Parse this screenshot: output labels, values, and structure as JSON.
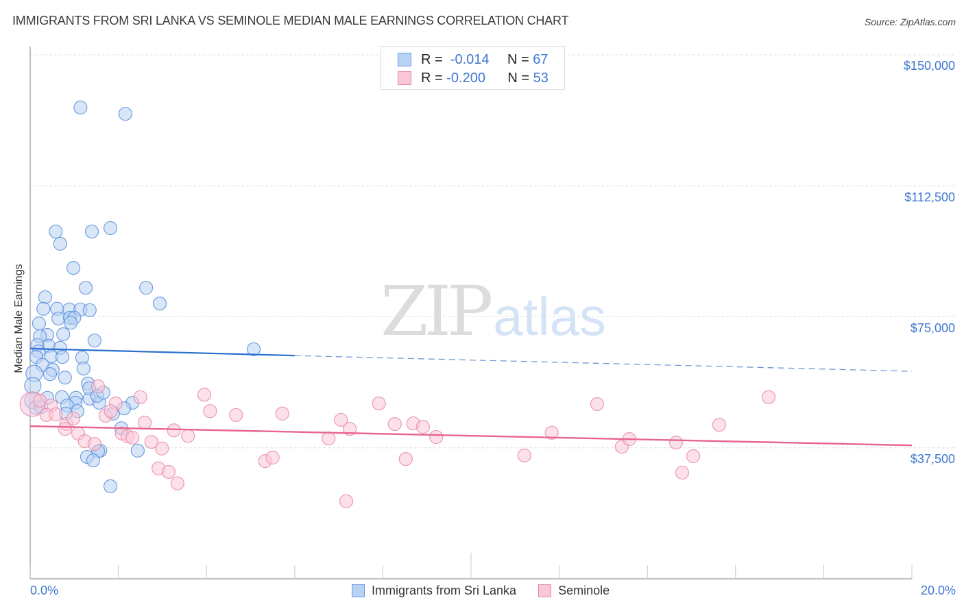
{
  "header": {
    "title": "IMMIGRANTS FROM SRI LANKA VS SEMINOLE MEDIAN MALE EARNINGS CORRELATION CHART",
    "source": "Source: ZipAtlas.com"
  },
  "legend_box": {
    "rows": [
      {
        "r_label": "R =",
        "r_value": "-0.014",
        "n_label": "N =",
        "n_value": "67"
      },
      {
        "r_label": "R =",
        "r_value": "-0.200",
        "n_label": "N =",
        "n_value": "53"
      }
    ]
  },
  "bottom_legend": {
    "series_1": "Immigrants from Sri Lanka",
    "series_2": "Seminole"
  },
  "axes": {
    "ylabel": "Median Male Earnings",
    "y_ticks": [
      "$150,000",
      "$112,500",
      "$75,000",
      "$37,500"
    ],
    "x_ticks": [
      "0.0%",
      "20.0%"
    ]
  },
  "watermark": {
    "part1": "ZIP",
    "part2": "atlas"
  },
  "colors": {
    "blue_fill": "#b8d2f3",
    "blue_stroke": "#5b8fdc",
    "blue_line": "#2a6fd0",
    "pink_fill": "#f9c8d8",
    "pink_stroke": "#e88aa8",
    "pink_line": "#e8648f",
    "tick_label": "#3f77d1"
  },
  "chart_data": {
    "type": "scatter",
    "title": "IMMIGRANTS FROM SRI LANKA VS SEMINOLE MEDIAN MALE EARNINGS CORRELATION CHART",
    "xlabel": "",
    "ylabel": "Median Male Earnings",
    "xlim": [
      0,
      20
    ],
    "ylim": [
      0,
      150000
    ],
    "x_unit": "%",
    "y_ticks": [
      37500,
      75000,
      112500,
      150000
    ],
    "x_ticks": [
      0,
      20
    ],
    "grid": "horizontal dashed",
    "legend_position": "top-center and bottom",
    "series": [
      {
        "name": "Immigrants from Sri Lanka",
        "R": -0.014,
        "N": 67,
        "trend": {
          "x": [
            0,
            6,
            20
          ],
          "y": [
            65900,
            63900,
            59400
          ],
          "solid_until": 6
        },
        "points": [
          [
            1.14,
            134900
          ],
          [
            2.16,
            133100
          ],
          [
            0.58,
            99400
          ],
          [
            1.4,
            99400
          ],
          [
            1.82,
            100400
          ],
          [
            0.68,
            95900
          ],
          [
            0.98,
            89000
          ],
          [
            1.26,
            83300
          ],
          [
            2.63,
            83300
          ],
          [
            2.94,
            78800
          ],
          [
            0.34,
            80600
          ],
          [
            0.3,
            77300
          ],
          [
            0.61,
            77300
          ],
          [
            0.89,
            77100
          ],
          [
            1.14,
            77100
          ],
          [
            1.35,
            76900
          ],
          [
            0.2,
            73100
          ],
          [
            0.64,
            74500
          ],
          [
            0.9,
            74700
          ],
          [
            1.0,
            74700
          ],
          [
            0.92,
            73300
          ],
          [
            0.75,
            70000
          ],
          [
            0.39,
            69800
          ],
          [
            0.22,
            69400
          ],
          [
            1.46,
            68200
          ],
          [
            0.42,
            66700
          ],
          [
            0.16,
            66900
          ],
          [
            0.68,
            66100
          ],
          [
            0.19,
            65100
          ],
          [
            5.07,
            65700
          ],
          [
            0.48,
            63700
          ],
          [
            0.73,
            63500
          ],
          [
            1.18,
            63300
          ],
          [
            0.14,
            63500
          ],
          [
            0.28,
            61200
          ],
          [
            1.21,
            60200
          ],
          [
            0.51,
            59800
          ],
          [
            0.09,
            58800
          ],
          [
            0.45,
            58600
          ],
          [
            0.79,
            57600
          ],
          [
            0.06,
            55300
          ],
          [
            1.31,
            55900
          ],
          [
            0.39,
            51800
          ],
          [
            0.72,
            52000
          ],
          [
            1.04,
            51800
          ],
          [
            1.35,
            51600
          ],
          [
            1.03,
            50400
          ],
          [
            1.57,
            50400
          ],
          [
            2.32,
            50400
          ],
          [
            0.84,
            49600
          ],
          [
            1.07,
            48000
          ],
          [
            1.34,
            54500
          ],
          [
            0.81,
            47300
          ],
          [
            1.88,
            47300
          ],
          [
            2.07,
            43100
          ],
          [
            1.59,
            36700
          ],
          [
            1.54,
            36500
          ],
          [
            2.44,
            36700
          ],
          [
            1.29,
            34900
          ],
          [
            1.43,
            33900
          ],
          [
            1.82,
            26500
          ],
          [
            0.06,
            51000
          ],
          [
            0.12,
            49000
          ],
          [
            1.52,
            52400
          ],
          [
            1.66,
            53300
          ],
          [
            2.13,
            48800
          ],
          [
            0.25,
            49200
          ]
        ]
      },
      {
        "name": "Seminole",
        "R": -0.2,
        "N": 53,
        "trend": {
          "x": [
            0,
            20
          ],
          "y": [
            43700,
            38200
          ]
        },
        "points": [
          [
            0.05,
            50000
          ],
          [
            0.22,
            51000
          ],
          [
            0.47,
            49600
          ],
          [
            0.37,
            46900
          ],
          [
            0.58,
            47100
          ],
          [
            0.82,
            44300
          ],
          [
            0.98,
            45900
          ],
          [
            0.79,
            42900
          ],
          [
            1.09,
            41600
          ],
          [
            1.24,
            39400
          ],
          [
            1.46,
            38600
          ],
          [
            1.54,
            55100
          ],
          [
            1.71,
            46700
          ],
          [
            1.94,
            50200
          ],
          [
            1.83,
            48000
          ],
          [
            2.08,
            41600
          ],
          [
            2.21,
            40800
          ],
          [
            2.32,
            40400
          ],
          [
            2.5,
            52000
          ],
          [
            2.6,
            44700
          ],
          [
            2.75,
            39200
          ],
          [
            2.99,
            37300
          ],
          [
            2.91,
            31600
          ],
          [
            3.14,
            30600
          ],
          [
            3.34,
            27300
          ],
          [
            3.26,
            42500
          ],
          [
            3.58,
            40900
          ],
          [
            3.95,
            52700
          ],
          [
            4.08,
            48000
          ],
          [
            4.67,
            46900
          ],
          [
            5.33,
            33700
          ],
          [
            5.5,
            34700
          ],
          [
            5.72,
            47300
          ],
          [
            6.77,
            40200
          ],
          [
            7.05,
            45500
          ],
          [
            7.25,
            42900
          ],
          [
            7.17,
            22200
          ],
          [
            7.91,
            50200
          ],
          [
            8.27,
            44300
          ],
          [
            8.52,
            34300
          ],
          [
            8.69,
            44500
          ],
          [
            8.91,
            43500
          ],
          [
            9.21,
            40600
          ],
          [
            11.21,
            35300
          ],
          [
            11.83,
            41800
          ],
          [
            12.86,
            50000
          ],
          [
            13.42,
            37800
          ],
          [
            13.59,
            40000
          ],
          [
            14.65,
            39000
          ],
          [
            14.79,
            30400
          ],
          [
            15.04,
            35100
          ],
          [
            15.63,
            44100
          ],
          [
            16.75,
            52000
          ]
        ]
      }
    ]
  }
}
